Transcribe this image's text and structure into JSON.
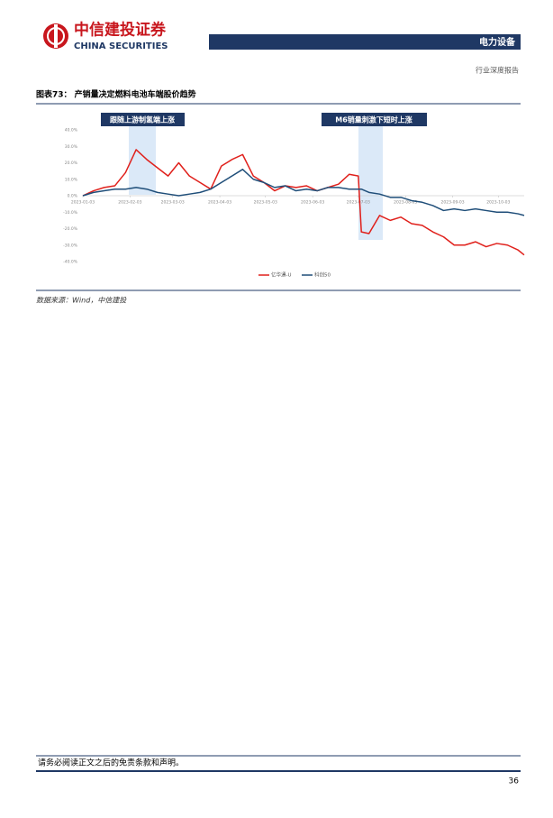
{
  "header": {
    "brand_cn": "中信建投证券",
    "brand_en": "CHINA SECURITIES",
    "sector": "电力设备",
    "report_type": "行业深度报告"
  },
  "chart_data": {
    "type": "line",
    "title": "图表73： 产销量决定燃料电池车端股价趋势",
    "source": "数据来源：Wind，中信建投",
    "annotations": [
      {
        "text": "跟随上游制氢端上涨"
      },
      {
        "text": "M6销量刺激下短时上涨"
      }
    ],
    "x": [
      "2023-01-03",
      "2023-01-10",
      "2023-01-17",
      "2023-01-24",
      "2023-01-31",
      "2023-02-07",
      "2023-02-14",
      "2023-02-21",
      "2023-02-28",
      "2023-03-07",
      "2023-03-14",
      "2023-03-21",
      "2023-03-28",
      "2023-04-04",
      "2023-04-11",
      "2023-04-18",
      "2023-04-25",
      "2023-05-02",
      "2023-05-09",
      "2023-05-16",
      "2023-05-23",
      "2023-05-30",
      "2023-06-06",
      "2023-06-13",
      "2023-06-20",
      "2023-06-27",
      "2023-07-03",
      "2023-07-05",
      "2023-07-10",
      "2023-07-17",
      "2023-07-24",
      "2023-07-31",
      "2023-08-07",
      "2023-08-14",
      "2023-08-21",
      "2023-08-28",
      "2023-09-04",
      "2023-09-11",
      "2023-09-18",
      "2023-09-25",
      "2023-10-02",
      "2023-10-09",
      "2023-10-16",
      "2023-10-20"
    ],
    "series": [
      {
        "name": "亿华通-U",
        "color": "#e0201b",
        "values": [
          0,
          3,
          5,
          6,
          14,
          28,
          22,
          17,
          12,
          20,
          12,
          8,
          4,
          18,
          22,
          25,
          12,
          8,
          3,
          6,
          5,
          6,
          3,
          5,
          7,
          13,
          12,
          -22,
          -23,
          -12,
          -15,
          -13,
          -17,
          -18,
          -22,
          -25,
          -30,
          -30,
          -28,
          -31,
          -29,
          -30,
          -33,
          -36
        ]
      },
      {
        "name": "科创50",
        "color": "#1f4e79",
        "values": [
          0,
          2,
          3,
          4,
          4,
          5,
          4,
          2,
          1,
          0,
          1,
          2,
          4,
          8,
          12,
          16,
          10,
          8,
          5,
          6,
          3,
          4,
          3,
          5,
          5,
          4,
          4,
          4,
          2,
          1,
          -1,
          -1,
          -3,
          -4,
          -6,
          -9,
          -8,
          -9,
          -8,
          -9,
          -10,
          -10,
          -11,
          -12
        ]
      }
    ],
    "xlim": [
      "2023-01-03",
      "2023-10-20"
    ],
    "xticks": [
      "2023-01-03",
      "2023-02-03",
      "2023-03-03",
      "2023-04-03",
      "2023-05-03",
      "2023-06-03",
      "2023-07-03",
      "2023-08-03",
      "2023-09-03",
      "2023-10-03"
    ],
    "ylim": [
      -40,
      40
    ],
    "yticks": [
      {
        "value": 40,
        "label": "40.0%"
      },
      {
        "value": 30,
        "label": "30.0%"
      },
      {
        "value": 20,
        "label": "20.0%"
      },
      {
        "value": 10,
        "label": "10.0%"
      },
      {
        "value": 0,
        "label": "0.0%"
      },
      {
        "value": -10,
        "label": "-10.0%"
      },
      {
        "value": -20,
        "label": "-20.0%"
      },
      {
        "value": -30,
        "label": "-30.0%"
      },
      {
        "value": -40,
        "label": "-40.0%"
      }
    ],
    "grid": false,
    "legend": "bottom"
  },
  "footer": {
    "disclaimer": "请务必阅读正文之后的免责条款和声明。",
    "page": "36"
  }
}
